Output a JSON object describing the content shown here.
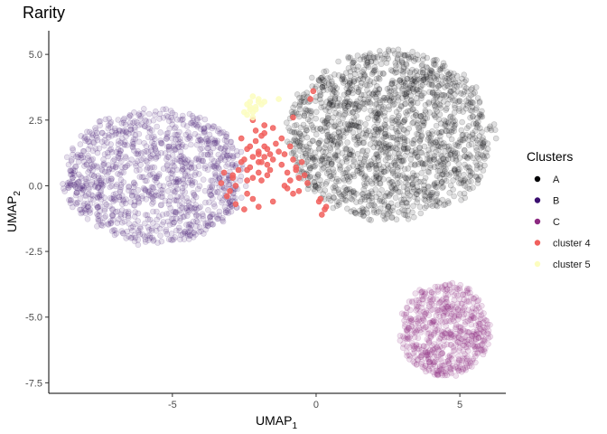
{
  "chart_data": {
    "type": "scatter",
    "title": "Rarity",
    "xlabel": "UMAP",
    "xlabel_sub": "1",
    "ylabel": "UMAP",
    "ylabel_sub": "2",
    "xlim": [
      -9.3,
      6.6
    ],
    "ylim": [
      -7.9,
      5.9
    ],
    "x_ticks": [
      {
        "value": -5,
        "label": "-5"
      },
      {
        "value": 0,
        "label": "0"
      },
      {
        "value": 5,
        "label": "5"
      }
    ],
    "y_ticks": [
      {
        "value": 5.0,
        "label": "5.0"
      },
      {
        "value": 2.5,
        "label": "2.5"
      },
      {
        "value": 0.0,
        "label": "0.0"
      },
      {
        "value": -2.5,
        "label": "-2.5"
      },
      {
        "value": -5.0,
        "label": "-5.0"
      },
      {
        "value": -7.5,
        "label": "-7.5"
      }
    ],
    "grid": false,
    "legend": {
      "title": "Clusters",
      "position": "right",
      "items": [
        {
          "label": "A",
          "color": "#000004"
        },
        {
          "label": "B",
          "color": "#3b0f70"
        },
        {
          "label": "C",
          "color": "#8c2981"
        },
        {
          "label": "cluster 4",
          "color": "#f1605d"
        },
        {
          "label": "cluster 5",
          "color": "#fcfdbf"
        }
      ]
    },
    "series": [
      {
        "name": "A",
        "color": "#000004",
        "opacity": 0.13,
        "distribution": "disc",
        "center": [
          2.6,
          1.9
        ],
        "radius": [
          3.7,
          3.35
        ],
        "count": 1700
      },
      {
        "name": "B",
        "color": "#3b0f70",
        "opacity": 0.13,
        "distribution": "disc",
        "center": [
          -5.6,
          0.35
        ],
        "radius": [
          3.3,
          2.65
        ],
        "count": 1100
      },
      {
        "name": "C",
        "color": "#8c2981",
        "opacity": 0.14,
        "distribution": "disc",
        "center": [
          4.5,
          -5.5
        ],
        "radius": [
          1.65,
          1.85
        ],
        "count": 600
      },
      {
        "name": "cluster 4",
        "color": "#f1605d",
        "opacity": 0.85,
        "distribution": "points",
        "x": [
          -2.0,
          -1.8,
          -2.2,
          -1.9,
          -1.6,
          -2.4,
          -2.1,
          -1.7,
          -1.5,
          -2.3,
          -1.9,
          -2.0,
          -1.8,
          -2.5,
          -1.4,
          -2.2,
          -1.7,
          -2.0,
          -1.6,
          -2.1,
          -1.3,
          -2.6,
          -1.9,
          -1.5,
          -2.3,
          -1.8,
          -2.0,
          -1.7,
          -2.4,
          -1.2,
          -1.0,
          -0.8,
          -0.9,
          -0.7,
          -1.1,
          -0.6,
          -0.5,
          -1.0,
          -0.8,
          -0.4,
          -0.9,
          -0.6,
          -0.3,
          -1.1,
          -0.7,
          0.1,
          0.3,
          0.2,
          0.35,
          0.15,
          -0.1,
          -0.2,
          -2.7,
          -2.9,
          -2.8,
          -3.0,
          -2.6,
          -2.4,
          -2.2,
          -3.2,
          -2.0,
          -1.5,
          -2.8,
          -3.1,
          -2.5,
          -2.2,
          -1.8,
          -1.2,
          -0.8,
          -3.3,
          -2.9,
          -2.4
        ],
        "y": [
          1.3,
          1.5,
          1.1,
          0.9,
          1.2,
          1.4,
          1.7,
          0.8,
          1.0,
          0.7,
          1.9,
          0.5,
          2.0,
          1.0,
          1.6,
          0.3,
          0.4,
          1.2,
          0.6,
          2.1,
          1.3,
          1.8,
          0.2,
          2.2,
          1.5,
          1.1,
          0.9,
          1.4,
          0.6,
          0.8,
          0.5,
          1.0,
          0.2,
          0.7,
          1.2,
          0.3,
          0.9,
          -0.1,
          -0.3,
          0.4,
          1.5,
          -0.2,
          0.1,
          0.0,
          0.6,
          -0.6,
          -0.9,
          -1.1,
          -0.8,
          -0.5,
          3.6,
          3.3,
          0.6,
          0.3,
          0.0,
          -0.2,
          0.9,
          0.2,
          -0.5,
          0.5,
          -0.8,
          -0.6,
          -0.7,
          -0.4,
          -0.9,
          2.5,
          2.3,
          1.8,
          2.6,
          0.1,
          0.4,
          -0.3
        ]
      },
      {
        "name": "cluster 5",
        "color": "#fcfdbf",
        "opacity": 0.85,
        "distribution": "points",
        "x": [
          -2.3,
          -2.1,
          -2.0,
          -2.2,
          -1.9,
          -2.4,
          -2.2,
          -2.3,
          -2.1,
          -2.5,
          -2.0,
          -2.2,
          -1.8,
          -2.3,
          -2.4,
          -1.3
        ],
        "y": [
          3.2,
          3.0,
          3.3,
          2.8,
          3.1,
          2.7,
          2.6,
          3.0,
          2.9,
          2.8,
          3.2,
          3.4,
          3.2,
          2.9,
          3.1,
          3.3
        ]
      }
    ]
  }
}
